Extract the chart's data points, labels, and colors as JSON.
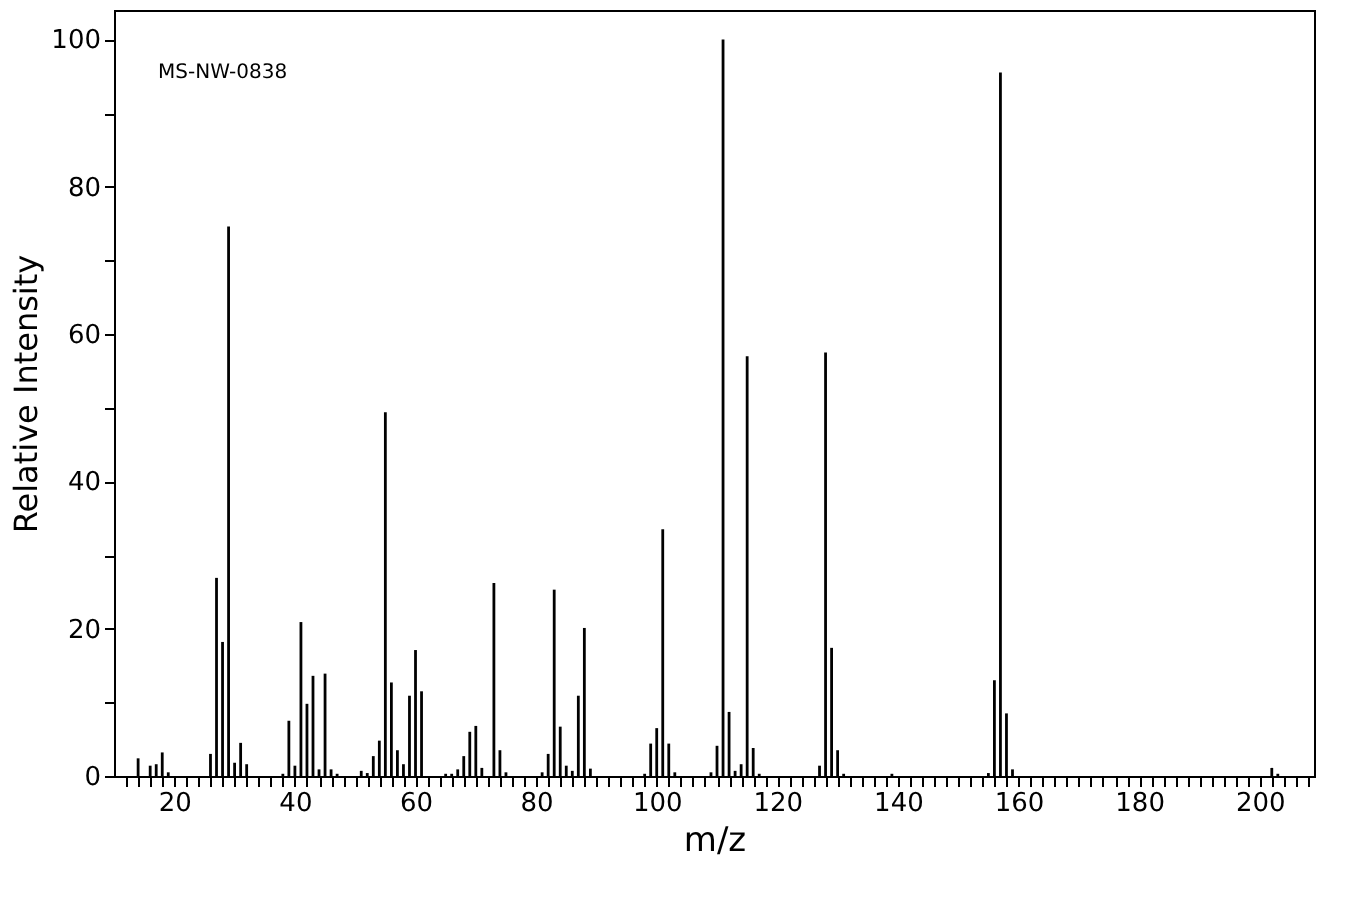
{
  "chart_data": {
    "type": "bar",
    "xlabel": "m/z",
    "ylabel": "Relative Intensity",
    "annotations": [
      "MS-NW-0838"
    ],
    "x": [
      14,
      16,
      17,
      18,
      19,
      26,
      27,
      28,
      29,
      30,
      31,
      32,
      38,
      39,
      40,
      41,
      42,
      43,
      44,
      45,
      46,
      47,
      51,
      52,
      53,
      54,
      55,
      56,
      57,
      58,
      59,
      60,
      61,
      65,
      66,
      67,
      68,
      69,
      70,
      71,
      73,
      74,
      75,
      81,
      82,
      83,
      84,
      85,
      86,
      87,
      88,
      89,
      90,
      98,
      99,
      100,
      101,
      102,
      103,
      109,
      110,
      111,
      112,
      113,
      114,
      115,
      116,
      117,
      127,
      128,
      129,
      130,
      131,
      139,
      155,
      156,
      157,
      158,
      159,
      202,
      203
    ],
    "values": [
      2.4,
      1.4,
      1.6,
      3.2,
      0.5,
      3.0,
      26.9,
      18.2,
      74.6,
      1.8,
      4.5,
      1.6,
      0.3,
      7.5,
      1.4,
      20.9,
      9.8,
      13.6,
      0.9,
      13.9,
      0.9,
      0.3,
      0.7,
      0.4,
      2.7,
      4.8,
      49.4,
      12.7,
      3.5,
      1.6,
      10.9,
      17.1,
      11.5,
      0.3,
      0.3,
      0.9,
      2.7,
      6.0,
      6.8,
      1.1,
      26.2,
      3.5,
      0.5,
      0.5,
      3.0,
      25.3,
      6.7,
      1.4,
      0.7,
      10.9,
      20.1,
      1.0,
      null,
      0.3,
      4.4,
      6.5,
      33.5,
      4.4,
      0.5,
      0.5,
      4.1,
      100,
      8.7,
      0.7,
      1.6,
      57.0,
      3.8,
      0.3,
      1.4,
      57.5,
      17.4,
      3.5,
      0.3,
      0.3,
      0.4,
      13.0,
      95.5,
      8.5,
      0.9,
      1.1,
      0.3
    ],
    "color": "#000000",
    "xlim": [
      10,
      209
    ],
    "ylim": [
      0,
      104
    ],
    "xticks": [
      {
        "value": 12,
        "label": null
      },
      {
        "value": 14,
        "label": null
      },
      {
        "value": 16,
        "label": null
      },
      {
        "value": 18,
        "label": null
      },
      20,
      {
        "value": 22,
        "label": null
      },
      {
        "value": 24,
        "label": null
      },
      {
        "value": 26,
        "label": null
      },
      {
        "value": 28,
        "label": null
      },
      {
        "value": 30,
        "label": null
      },
      {
        "value": 32,
        "label": null
      },
      {
        "value": 34,
        "label": null
      },
      {
        "value": 36,
        "label": null
      },
      {
        "value": 38,
        "label": null
      },
      40,
      {
        "value": 42,
        "label": null
      },
      {
        "value": 44,
        "label": null
      },
      {
        "value": 46,
        "label": null
      },
      {
        "value": 48,
        "label": null
      },
      {
        "value": 50,
        "label": null
      },
      {
        "value": 52,
        "label": null
      },
      {
        "value": 54,
        "label": null
      },
      {
        "value": 56,
        "label": null
      },
      {
        "value": 58,
        "label": null
      },
      60,
      {
        "value": 62,
        "label": null
      },
      {
        "value": 64,
        "label": null
      },
      {
        "value": 66,
        "label": null
      },
      {
        "value": 68,
        "label": null
      },
      {
        "value": 70,
        "label": null
      },
      {
        "value": 72,
        "label": null
      },
      {
        "value": 74,
        "label": null
      },
      {
        "value": 76,
        "label": null
      },
      {
        "value": 78,
        "label": null
      },
      80,
      {
        "value": 82,
        "label": null
      },
      {
        "value": 84,
        "label": null
      },
      {
        "value": 86,
        "label": null
      },
      {
        "value": 88,
        "label": null
      },
      {
        "value": 90,
        "label": null
      },
      {
        "value": 92,
        "label": null
      },
      {
        "value": 94,
        "label": null
      },
      {
        "value": 96,
        "label": null
      },
      {
        "value": 98,
        "label": null
      },
      100,
      {
        "value": 102,
        "label": null
      },
      {
        "value": 104,
        "label": null
      },
      {
        "value": 106,
        "label": null
      },
      {
        "value": 108,
        "label": null
      },
      {
        "value": 110,
        "label": null
      },
      {
        "value": 112,
        "label": null
      },
      {
        "value": 114,
        "label": null
      },
      {
        "value": 116,
        "label": null
      },
      {
        "value": 118,
        "label": null
      },
      120,
      {
        "value": 122,
        "label": null
      },
      {
        "value": 124,
        "label": null
      },
      {
        "value": 126,
        "label": null
      },
      {
        "value": 128,
        "label": null
      },
      {
        "value": 130,
        "label": null
      },
      {
        "value": 132,
        "label": null
      },
      {
        "value": 134,
        "label": null
      },
      {
        "value": 136,
        "label": null
      },
      {
        "value": 138,
        "label": null
      },
      140,
      {
        "value": 142,
        "label": null
      },
      {
        "value": 144,
        "label": null
      },
      {
        "value": 146,
        "label": null
      },
      {
        "value": 148,
        "label": null
      },
      {
        "value": 150,
        "label": null
      },
      {
        "value": 152,
        "label": null
      },
      {
        "value": 154,
        "label": null
      },
      {
        "value": 156,
        "label": null
      },
      {
        "value": 158,
        "label": null
      },
      160,
      {
        "value": 162,
        "label": null
      },
      {
        "value": 164,
        "label": null
      },
      {
        "value": 166,
        "label": null
      },
      {
        "value": 168,
        "label": null
      },
      {
        "value": 170,
        "label": null
      },
      {
        "value": 172,
        "label": null
      },
      {
        "value": 174,
        "label": null
      },
      {
        "value": 176,
        "label": null
      },
      {
        "value": 178,
        "label": null
      },
      180,
      {
        "value": 182,
        "label": null
      },
      {
        "value": 184,
        "label": null
      },
      {
        "value": 186,
        "label": null
      },
      {
        "value": 188,
        "label": null
      },
      {
        "value": 190,
        "label": null
      },
      {
        "value": 192,
        "label": null
      },
      {
        "value": 194,
        "label": null
      },
      {
        "value": 196,
        "label": null
      },
      {
        "value": 198,
        "label": null
      },
      200,
      {
        "value": 202,
        "label": null
      },
      {
        "value": 204,
        "label": null
      },
      {
        "value": 206,
        "label": null
      },
      {
        "value": 208,
        "label": null
      }
    ],
    "yticks": [
      0,
      {
        "value": 10,
        "label": null
      },
      20,
      {
        "value": 30,
        "label": null
      },
      40,
      {
        "value": 50,
        "label": null
      },
      60,
      {
        "value": 70,
        "label": null
      },
      80,
      {
        "value": 90,
        "label": null
      },
      100
    ],
    "grid": false
  }
}
